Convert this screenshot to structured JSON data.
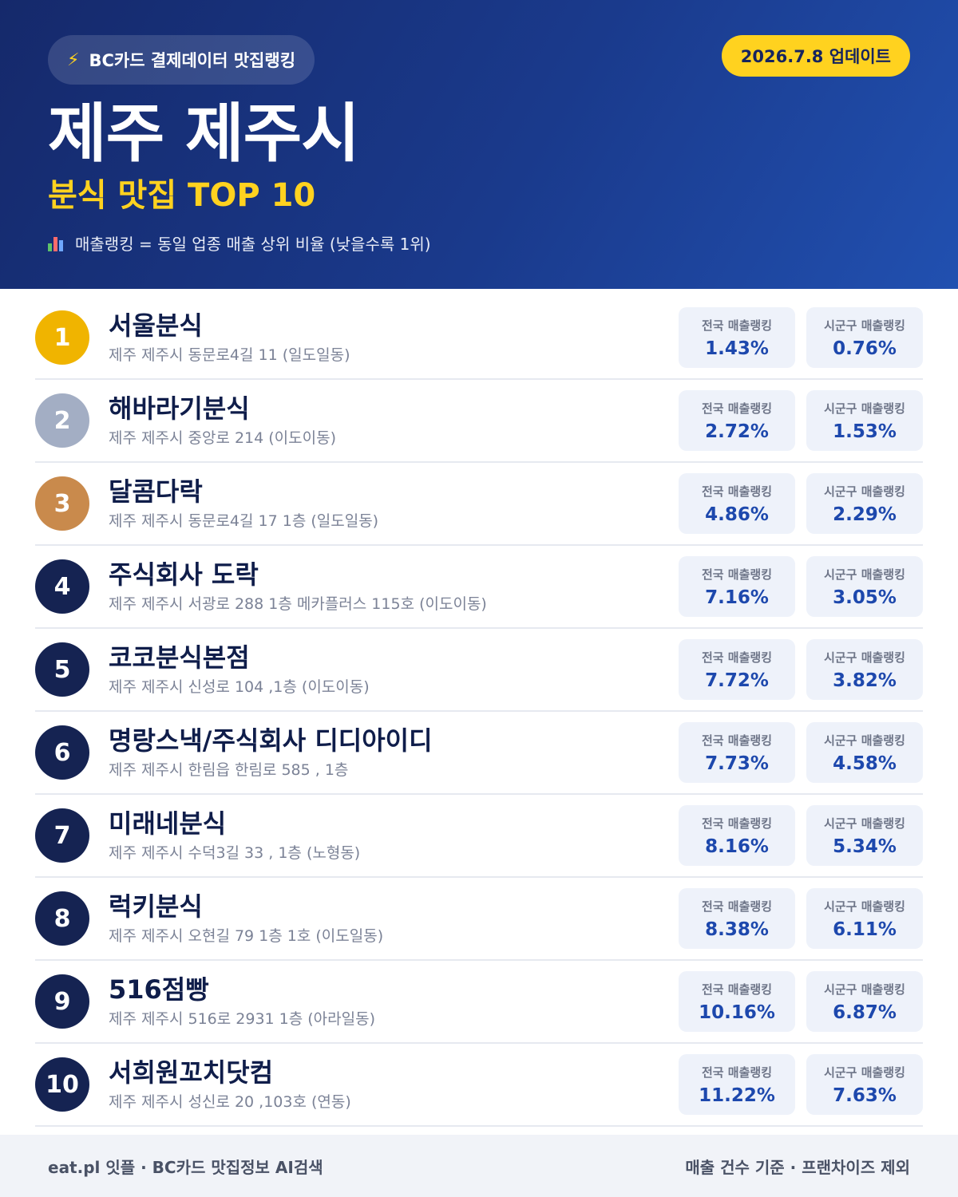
{
  "header": {
    "brand_icon": "lightning-icon",
    "brand": "BC카드 결제데이터 맛집랭킹",
    "update": "2026.7.8 업데이트",
    "title": "제주 제주시",
    "subtitle": "분식 맛집 TOP 10",
    "note_icon": "bar-chart-icon",
    "note": "매출랭킹 = 동일 업종 매출 상위 비율 (낮을수록 1위)"
  },
  "colors": {
    "gold": "#f0b400",
    "silver": "#a3aec4",
    "bronze": "#c98a4c",
    "navy": "#152352",
    "accent_yellow": "#ffd21f",
    "value_blue": "#1d48ad"
  },
  "stat_labels": {
    "national": "전국 매출랭킹",
    "district": "시군구 매출랭킹"
  },
  "rankings": [
    {
      "rank": "1",
      "name": "서울분식",
      "address": "제주 제주시 동문로4길 11 (일도일동)",
      "national": "1.43%",
      "district": "0.76%"
    },
    {
      "rank": "2",
      "name": "해바라기분식",
      "address": "제주 제주시 중앙로 214 (이도이동)",
      "national": "2.72%",
      "district": "1.53%"
    },
    {
      "rank": "3",
      "name": "달콤다락",
      "address": "제주 제주시 동문로4길 17 1층 (일도일동)",
      "national": "4.86%",
      "district": "2.29%"
    },
    {
      "rank": "4",
      "name": "주식회사 도락",
      "address": "제주 제주시 서광로 288 1층 메카플러스 115호 (이도이동)",
      "national": "7.16%",
      "district": "3.05%"
    },
    {
      "rank": "5",
      "name": "코코분식본점",
      "address": "제주 제주시 신성로 104 ,1층 (이도이동)",
      "national": "7.72%",
      "district": "3.82%"
    },
    {
      "rank": "6",
      "name": "명랑스낵/주식회사 디디아이디",
      "address": "제주 제주시 한림읍 한림로 585 , 1층",
      "national": "7.73%",
      "district": "4.58%"
    },
    {
      "rank": "7",
      "name": "미래네분식",
      "address": "제주 제주시 수덕3길 33 , 1층 (노형동)",
      "national": "8.16%",
      "district": "5.34%"
    },
    {
      "rank": "8",
      "name": "럭키분식",
      "address": "제주 제주시 오현길 79 1층 1호 (이도일동)",
      "national": "8.38%",
      "district": "6.11%"
    },
    {
      "rank": "9",
      "name": "516점빵",
      "address": "제주 제주시 516로 2931 1층 (아라일동)",
      "national": "10.16%",
      "district": "6.87%"
    },
    {
      "rank": "10",
      "name": "서희원꼬치닷컴",
      "address": "제주 제주시 성신로 20 ,103호 (연동)",
      "national": "11.22%",
      "district": "7.63%"
    }
  ],
  "footer": {
    "left": "eat.pl 잇플 · BC카드 맛집정보 AI검색",
    "right": "매출 건수 기준 · 프랜차이즈 제외"
  }
}
